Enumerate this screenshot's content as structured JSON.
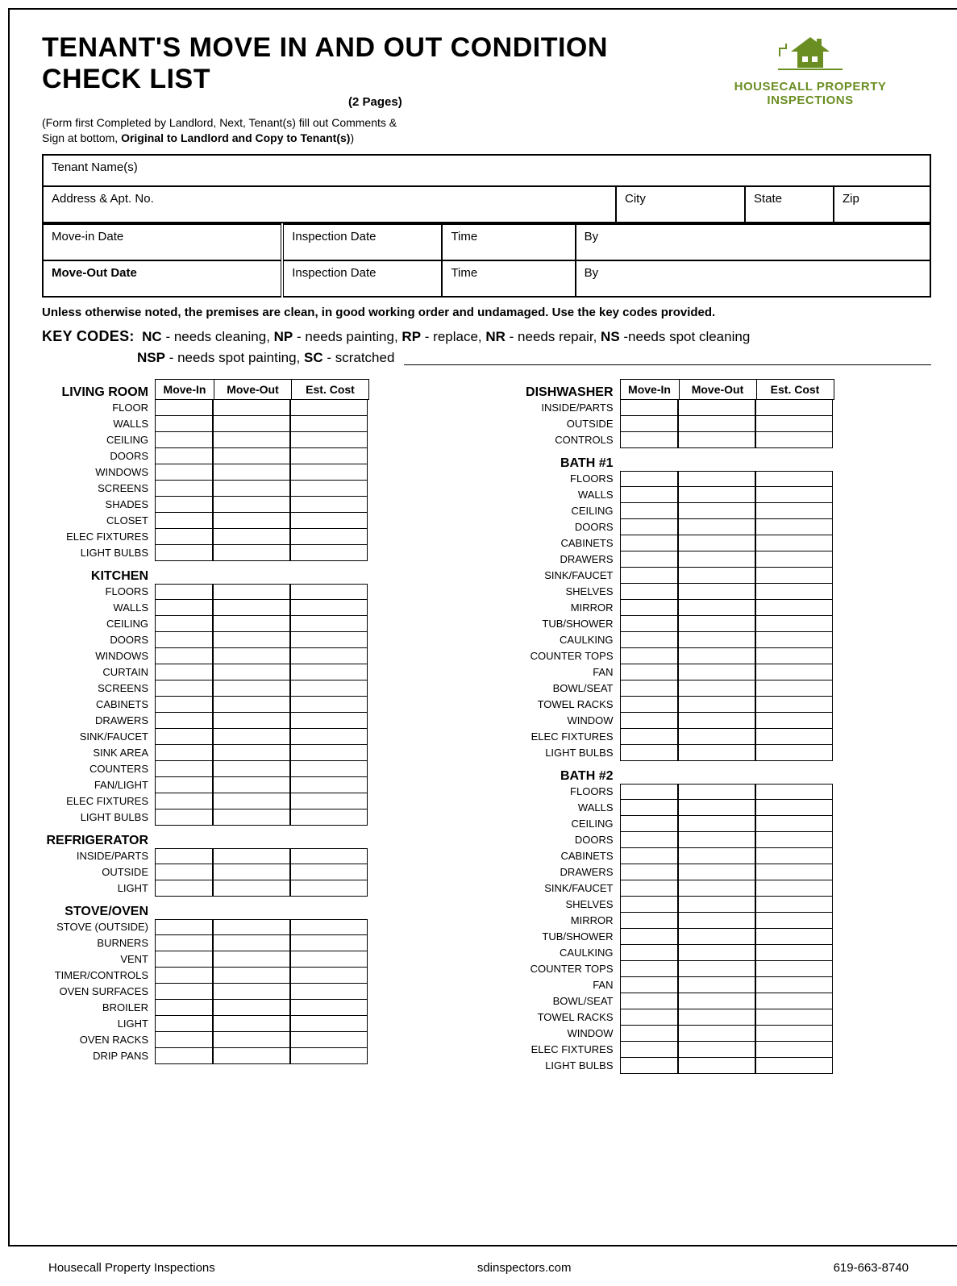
{
  "title": "TENANT'S MOVE IN AND OUT CONDITION CHECK LIST",
  "pages_sub": "(2 Pages)",
  "instructions_l1": "(Form first Completed by Landlord, Next, Tenant(s) fill out Comments &",
  "instructions_l2_a": "Sign at bottom, ",
  "instructions_l2_b": "Original to Landlord and Copy to Tenant(s)",
  "instructions_l2_c": ")",
  "logo_text": "HOUSECALL PROPERTY INSPECTIONS",
  "info": {
    "tenant_label": "Tenant Name(s)",
    "address_label": "Address & Apt. No.",
    "city_label": "City",
    "state_label": "State",
    "zip_label": "Zip",
    "movein_label": "Move-in Date",
    "moveout_label": "Move-Out Date",
    "inspdate_label": "Inspection Date",
    "time_label": "Time",
    "by_label": "By"
  },
  "note": "Unless otherwise noted, the premises are clean, in good working order and undamaged. Use the key codes provided.",
  "keycodes_lead": "KEY CODES:",
  "kc": {
    "nc": "NC",
    "nc_t": " - needs cleaning, ",
    "np": "NP",
    "np_t": " - needs painting, ",
    "rp": "RP",
    "rp_t": " - replace, ",
    "nr": "NR",
    "nr_t": " - needs repair, ",
    "ns": "NS",
    "ns_t": " -needs spot cleaning",
    "nsp": "NSP",
    "nsp_t": " - needs spot painting, ",
    "sc": "SC",
    "sc_t": " - scratched"
  },
  "col_headers": {
    "movein": "Move-In",
    "moveout": "Move-Out",
    "estcost": "Est. Cost"
  },
  "sections_left": [
    {
      "title": "LIVING ROOM",
      "items": [
        "FLOOR",
        "WALLS",
        "CEILING",
        "DOORS",
        "WINDOWS",
        "SCREENS",
        "SHADES",
        "CLOSET",
        "ELEC FIXTURES",
        "LIGHT BULBS"
      ]
    },
    {
      "title": "KITCHEN",
      "items": [
        "FLOORS",
        "WALLS",
        "CEILING",
        "DOORS",
        "WINDOWS",
        "CURTAIN",
        "SCREENS",
        "CABINETS",
        "DRAWERS",
        "SINK/FAUCET",
        "SINK AREA",
        "COUNTERS",
        "FAN/LIGHT",
        "ELEC FIXTURES",
        "LIGHT BULBS"
      ]
    },
    {
      "title": "REFRIGERATOR",
      "items": [
        "INSIDE/PARTS",
        "OUTSIDE",
        "LIGHT"
      ]
    },
    {
      "title": "STOVE/OVEN",
      "items": [
        "STOVE (OUTSIDE)",
        "BURNERS",
        "VENT",
        "TIMER/CONTROLS",
        "OVEN SURFACES",
        "BROILER",
        "LIGHT",
        "OVEN RACKS",
        "DRIP PANS"
      ]
    }
  ],
  "sections_right": [
    {
      "title": "DISHWASHER",
      "items": [
        "INSIDE/PARTS",
        "OUTSIDE",
        "CONTROLS"
      ]
    },
    {
      "title": "BATH #1",
      "items": [
        "FLOORS",
        "WALLS",
        "CEILING",
        "DOORS",
        "CABINETS",
        "DRAWERS",
        "SINK/FAUCET",
        "SHELVES",
        "MIRROR",
        "TUB/SHOWER",
        "CAULKING",
        "COUNTER TOPS",
        "FAN",
        "BOWL/SEAT",
        "TOWEL RACKS",
        "WINDOW",
        "ELEC FIXTURES",
        "LIGHT BULBS"
      ]
    },
    {
      "title": "BATH #2",
      "items": [
        "FLOORS",
        "WALLS",
        "CEILING",
        "DOORS",
        "CABINETS",
        "DRAWERS",
        "SINK/FAUCET",
        "SHELVES",
        "MIRROR",
        "TUB/SHOWER",
        "CAULKING",
        "COUNTER TOPS",
        "FAN",
        "BOWL/SEAT",
        "TOWEL RACKS",
        "WINDOW",
        "ELEC FIXTURES",
        "LIGHT BULBS"
      ]
    }
  ],
  "footer": {
    "left": "Housecall Property Inspections",
    "center": "sdinspectors.com",
    "right": "619-663-8740"
  },
  "colors": {
    "brand_green": "#6b8e23",
    "border": "#000000",
    "text": "#000000",
    "bg": "#ffffff"
  }
}
